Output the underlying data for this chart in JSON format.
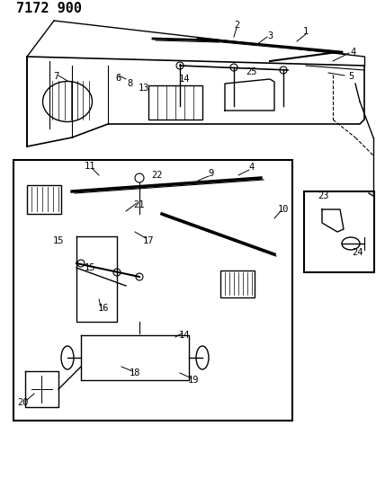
{
  "title": "7172 900",
  "bg_color": "#ffffff",
  "line_color": "#000000",
  "title_fontsize": 11,
  "label_fontsize": 7.5,
  "figsize": [
    4.28,
    5.33
  ],
  "dpi": 100
}
